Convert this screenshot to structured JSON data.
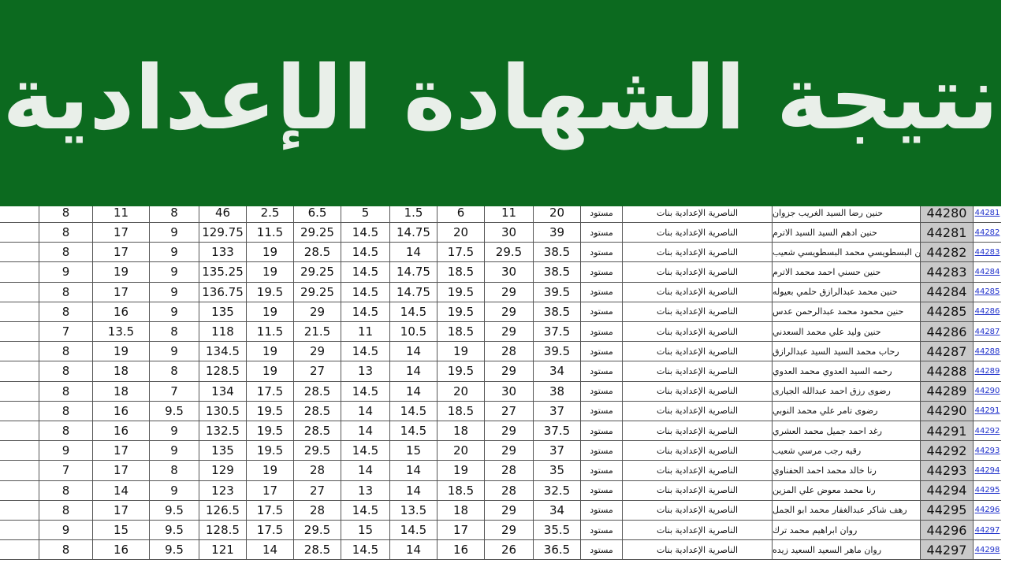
{
  "header": {
    "title": "نتيجة الشهادة الإعدادية"
  },
  "table": {
    "rows": [
      [
        8,
        11,
        8,
        46,
        2.5,
        6.5,
        5,
        1.5,
        6,
        11,
        20,
        "مستود",
        "الناصرية الإعدادية بنات",
        "حنين رضا السيد الغريب جزوان",
        44280,
        "44281"
      ],
      [
        8,
        17,
        9,
        129.75,
        11.5,
        29.25,
        14.5,
        14.75,
        20,
        30,
        39,
        "مستود",
        "الناصرية الإعدادية بنات",
        "حنين ادهم السيد السيد الاترم",
        44281,
        "44282"
      ],
      [
        8,
        17,
        9,
        133,
        19,
        28.5,
        14.5,
        14,
        17.5,
        29.5,
        38.5,
        "مستود",
        "الناصرية الإعدادية بنات",
        "حنين البسطويسي محمد البسطويسي شعيب",
        44282,
        "44283"
      ],
      [
        9,
        19,
        9,
        135.25,
        19,
        29.25,
        14.5,
        14.75,
        18.5,
        30,
        38.5,
        "مستود",
        "الناصرية الإعدادية بنات",
        "حنين حسني احمد محمد الاترم",
        44283,
        "44284"
      ],
      [
        8,
        17,
        9,
        136.75,
        19.5,
        29.25,
        14.5,
        14.75,
        19.5,
        29,
        39.5,
        "مستود",
        "الناصرية الإعدادية بنات",
        "حنين محمد عبدالرازق حلمي بعيوله",
        44284,
        "44285"
      ],
      [
        8,
        16,
        9,
        135,
        19,
        29,
        14.5,
        14.5,
        19.5,
        29,
        38.5,
        "مستود",
        "الناصرية الإعدادية بنات",
        "حنين محمود محمد عبدالرحمن عدس",
        44285,
        "44286"
      ],
      [
        7,
        13.5,
        8,
        118,
        11.5,
        21.5,
        11,
        10.5,
        18.5,
        29,
        37.5,
        "مستود",
        "الناصرية الإعدادية بنات",
        "حنين وليد علي محمد السعدني",
        44286,
        "44287"
      ],
      [
        8,
        19,
        9,
        134.5,
        19,
        29,
        14.5,
        14,
        19,
        28,
        39.5,
        "مستود",
        "الناصرية الإعدادية بنات",
        "رحاب محمد السيد السيد عبدالرازق",
        44287,
        "44288"
      ],
      [
        8,
        18,
        8,
        128.5,
        19,
        27,
        13,
        14,
        19.5,
        29,
        34,
        "مستود",
        "الناصرية الإعدادية بنات",
        "رحمه السيد العدوي محمد العدوي",
        44288,
        "44289"
      ],
      [
        8,
        18,
        7,
        134,
        17.5,
        28.5,
        14.5,
        14,
        20,
        30,
        38,
        "مستود",
        "الناصرية الإعدادية بنات",
        "رضوى رزق احمد عبدالله الجيارى",
        44289,
        "44290"
      ],
      [
        8,
        16,
        9.5,
        130.5,
        19.5,
        28.5,
        14,
        14.5,
        18.5,
        27,
        37,
        "مستود",
        "الناصرية الإعدادية بنات",
        "رضوى تامر علي محمد النوبي",
        44290,
        "44291"
      ],
      [
        8,
        16,
        9,
        132.5,
        19.5,
        28.5,
        14,
        14.5,
        18,
        29,
        37.5,
        "مستود",
        "الناصرية الإعدادية بنات",
        "رغد احمد جميل محمد العشري",
        44291,
        "44292"
      ],
      [
        9,
        17,
        9,
        135,
        19.5,
        29.5,
        14.5,
        15,
        20,
        29,
        37,
        "مستود",
        "الناصرية الإعدادية بنات",
        "رقيه رجب مرسي شعيب",
        44292,
        "44293"
      ],
      [
        7,
        17,
        8,
        129,
        19,
        28,
        14,
        14,
        19,
        28,
        35,
        "مستود",
        "الناصرية الإعدادية بنات",
        "رنا خالد محمد احمد الحفناوي",
        44293,
        "44294"
      ],
      [
        8,
        14,
        9,
        123,
        17,
        27,
        13,
        14,
        18.5,
        28,
        32.5,
        "مستود",
        "الناصرية الإعدادية بنات",
        "رنا محمد معوض علي المزين",
        44294,
        "44295"
      ],
      [
        8,
        17,
        9.5,
        126.5,
        17.5,
        28,
        14.5,
        13.5,
        18,
        29,
        34,
        "مستود",
        "الناصرية الإعدادية بنات",
        "رهف شاكر عبدالغفار محمد ابو الجمل",
        44295,
        "44296"
      ],
      [
        9,
        15,
        9.5,
        128.5,
        17.5,
        29.5,
        15,
        14.5,
        17,
        29,
        35.5,
        "مستود",
        "الناصرية الإعدادية بنات",
        "روان ابراهيم محمد ترك",
        44296,
        "44297"
      ],
      [
        8,
        16,
        9.5,
        121,
        14,
        28.5,
        14.5,
        14,
        16,
        26,
        36.5,
        "مستود",
        "الناصرية الإعدادية بنات",
        "روان ماهر السعيد السعيد زيده",
        44297,
        "44298"
      ]
    ]
  }
}
